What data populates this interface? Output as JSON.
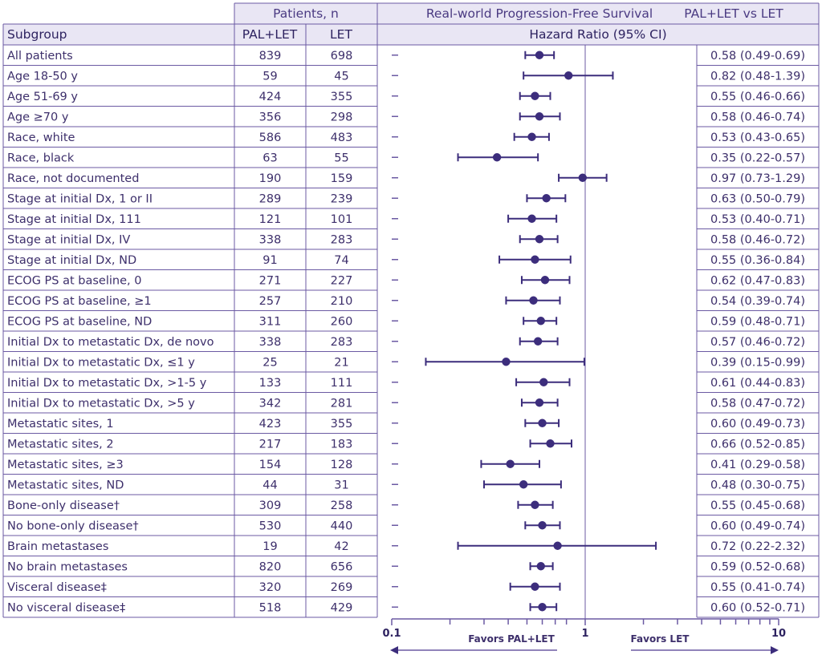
{
  "header": {
    "patients_group": "Patients, n",
    "survival_title": "Real-world Progression-Free Survival",
    "comparison": "PAL+LET vs LET",
    "col_subgroup": "Subgroup",
    "col_pal": "PAL+LET",
    "col_let": "LET",
    "col_hr": "Hazard Ratio (95% CI)"
  },
  "favors": {
    "left": "Favors PAL+LET",
    "right": "Favors LET"
  },
  "colors": {
    "primary": "#3c2d7c",
    "header_bg": "#e9e6f4",
    "line": "#6b5aa3"
  },
  "chart_data": {
    "type": "forest",
    "scale": "log",
    "xlim": [
      0.1,
      10
    ],
    "xticks": [
      "0.1",
      "1",
      "10"
    ],
    "reference_line": 1,
    "rows": [
      {
        "subgroup": "All patients",
        "pal_let": "839",
        "let": "698",
        "hr": 0.58,
        "lo": 0.49,
        "hi": 0.69,
        "label": "0.58 (0.49-0.69)"
      },
      {
        "subgroup": "Age 18-50 y",
        "pal_let": "59",
        "let": "45",
        "hr": 0.82,
        "lo": 0.48,
        "hi": 1.39,
        "label": "0.82 (0.48-1.39)"
      },
      {
        "subgroup": "Age 51-69 y",
        "pal_let": "424",
        "let": "355",
        "hr": 0.55,
        "lo": 0.46,
        "hi": 0.66,
        "label": "0.55 (0.46-0.66)"
      },
      {
        "subgroup": "Age ≥70 y",
        "pal_let": "356",
        "let": "298",
        "hr": 0.58,
        "lo": 0.46,
        "hi": 0.74,
        "label": "0.58 (0.46-0.74)"
      },
      {
        "subgroup": "Race, white",
        "pal_let": "586",
        "let": "483",
        "hr": 0.53,
        "lo": 0.43,
        "hi": 0.65,
        "label": "0.53 (0.43-0.65)"
      },
      {
        "subgroup": "Race, black",
        "pal_let": "63",
        "let": "55",
        "hr": 0.35,
        "lo": 0.22,
        "hi": 0.57,
        "label": "0.35 (0.22-0.57)"
      },
      {
        "subgroup": "Race, not documented",
        "pal_let": "190",
        "let": "159",
        "hr": 0.97,
        "lo": 0.73,
        "hi": 1.29,
        "label": "0.97 (0.73-1.29)"
      },
      {
        "subgroup": "Stage at initial Dx, 1 or II",
        "pal_let": "289",
        "let": "239",
        "hr": 0.63,
        "lo": 0.5,
        "hi": 0.79,
        "label": "0.63 (0.50-0.79)"
      },
      {
        "subgroup": "Stage at initial Dx, 111",
        "pal_let": "121",
        "let": "101",
        "hr": 0.53,
        "lo": 0.4,
        "hi": 0.71,
        "label": "0.53 (0.40-0.71)"
      },
      {
        "subgroup": "Stage at initial Dx, IV",
        "pal_let": "338",
        "let": "283",
        "hr": 0.58,
        "lo": 0.46,
        "hi": 0.72,
        "label": "0.58 (0.46-0.72)"
      },
      {
        "subgroup": "Stage at initial Dx, ND",
        "pal_let": "91",
        "let": "74",
        "hr": 0.55,
        "lo": 0.36,
        "hi": 0.84,
        "label": "0.55 (0.36-0.84)"
      },
      {
        "subgroup": "ECOG PS at baseline, 0",
        "pal_let": "271",
        "let": "227",
        "hr": 0.62,
        "lo": 0.47,
        "hi": 0.83,
        "label": "0.62 (0.47-0.83)"
      },
      {
        "subgroup": "ECOG PS at baseline, ≥1",
        "pal_let": "257",
        "let": "210",
        "hr": 0.54,
        "lo": 0.39,
        "hi": 0.74,
        "label": "0.54 (0.39-0.74)"
      },
      {
        "subgroup": "ECOG PS at baseline, ND",
        "pal_let": "311",
        "let": "260",
        "hr": 0.59,
        "lo": 0.48,
        "hi": 0.71,
        "label": "0.59 (0.48-0.71)"
      },
      {
        "subgroup": "Initial Dx to metastatic Dx, de novo",
        "pal_let": "338",
        "let": "283",
        "hr": 0.57,
        "lo": 0.46,
        "hi": 0.72,
        "label": "0.57 (0.46-0.72)"
      },
      {
        "subgroup": "Initial Dx to metastatic Dx, ≤1 y",
        "pal_let": "25",
        "let": "21",
        "hr": 0.39,
        "lo": 0.15,
        "hi": 0.99,
        "label": "0.39 (0.15-0.99)"
      },
      {
        "subgroup": "Initial Dx to metastatic Dx, >1-5 y",
        "pal_let": "133",
        "let": "111",
        "hr": 0.61,
        "lo": 0.44,
        "hi": 0.83,
        "label": "0.61 (0.44-0.83)"
      },
      {
        "subgroup": "Initial Dx to metastatic Dx, >5 y",
        "pal_let": "342",
        "let": "281",
        "hr": 0.58,
        "lo": 0.47,
        "hi": 0.72,
        "label": "0.58 (0.47-0.72)"
      },
      {
        "subgroup": "Metastatic sites, 1",
        "pal_let": "423",
        "let": "355",
        "hr": 0.6,
        "lo": 0.49,
        "hi": 0.73,
        "label": "0.60 (0.49-0.73)"
      },
      {
        "subgroup": "Metastatic sites, 2",
        "pal_let": "217",
        "let": "183",
        "hr": 0.66,
        "lo": 0.52,
        "hi": 0.85,
        "label": "0.66 (0.52-0.85)"
      },
      {
        "subgroup": "Metastatic sites, ≥3",
        "pal_let": "154",
        "let": "128",
        "hr": 0.41,
        "lo": 0.29,
        "hi": 0.58,
        "label": "0.41 (0.29-0.58)"
      },
      {
        "subgroup": "Metastatic sites, ND",
        "pal_let": "44",
        "let": "31",
        "hr": 0.48,
        "lo": 0.3,
        "hi": 0.75,
        "label": "0.48 (0.30-0.75)"
      },
      {
        "subgroup": "Bone-only  disease†",
        "pal_let": "309",
        "let": "258",
        "hr": 0.55,
        "lo": 0.45,
        "hi": 0.68,
        "label": "0.55 (0.45-0.68)"
      },
      {
        "subgroup": "No bone-only disease†",
        "pal_let": "530",
        "let": "440",
        "hr": 0.6,
        "lo": 0.49,
        "hi": 0.74,
        "label": "0.60 (0.49-0.74)"
      },
      {
        "subgroup": "Brain metastases",
        "pal_let": "19",
        "let": "42",
        "hr": 0.72,
        "lo": 0.22,
        "hi": 2.32,
        "label": "0.72 (0.22-2.32)"
      },
      {
        "subgroup": "No brain metastases",
        "pal_let": "820",
        "let": "656",
        "hr": 0.59,
        "lo": 0.52,
        "hi": 0.68,
        "label": "0.59 (0.52-0.68)"
      },
      {
        "subgroup": "Visceral disease‡",
        "pal_let": "320",
        "let": "269",
        "hr": 0.55,
        "lo": 0.41,
        "hi": 0.74,
        "label": "0.55 (0.41-0.74)"
      },
      {
        "subgroup": "No visceral disease‡",
        "pal_let": "518",
        "let": "429",
        "hr": 0.6,
        "lo": 0.52,
        "hi": 0.71,
        "label": "0.60 (0.52-0.71)"
      }
    ]
  }
}
